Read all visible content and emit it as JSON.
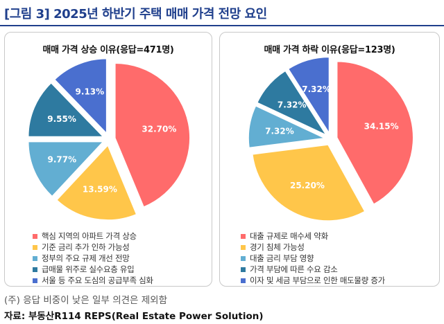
{
  "figure_title": "[그림 3] 2025년 하반기 주택 매매 가격 전망 요인",
  "note": "(주) 응답 비중이 낮은 일부 의견은 제외함",
  "source": "자료: 부동산R114 REPS(Real Estate Power Solution)",
  "chart_data": [
    {
      "type": "pie",
      "title": "매매 가격 상승 이유(응답=471명)",
      "categories": [
        "핵심 지역의 아파트 가격 상승",
        "기준 금리 추가 인하 가능성",
        "정부의 주요 규제 개선 전망",
        "급매물 위주로 실수요층 유입",
        "서울 등 주요 도심의 공급부족 심화"
      ],
      "values": [
        32.7,
        13.59,
        9.77,
        9.55,
        9.13
      ],
      "labels": [
        "32.70%",
        "13.59%",
        "9.77%",
        "9.55%",
        "9.13%"
      ],
      "colors": [
        "#ff6b6b",
        "#ffc64a",
        "#62aed2",
        "#2e7aa0",
        "#4a6fcf"
      ],
      "legend_position": "bottom"
    },
    {
      "type": "pie",
      "title": "매매 가격 하락 이유(응답=123명)",
      "categories": [
        "대출 규제로 매수세 약화",
        "경기 침체 가능성",
        "대출 금리 부담 영향",
        "가격 부담에 따른 수요 감소",
        "이자 및 세금 부담으로 인한 매도물량 증가"
      ],
      "values": [
        34.15,
        25.2,
        7.32,
        7.32,
        7.32
      ],
      "labels": [
        "34.15%",
        "25.20%",
        "7.32%",
        "7.32%",
        "7.32%"
      ],
      "colors": [
        "#ff6b6b",
        "#ffc64a",
        "#62aed2",
        "#2e7aa0",
        "#4a6fcf"
      ],
      "legend_position": "bottom"
    }
  ]
}
